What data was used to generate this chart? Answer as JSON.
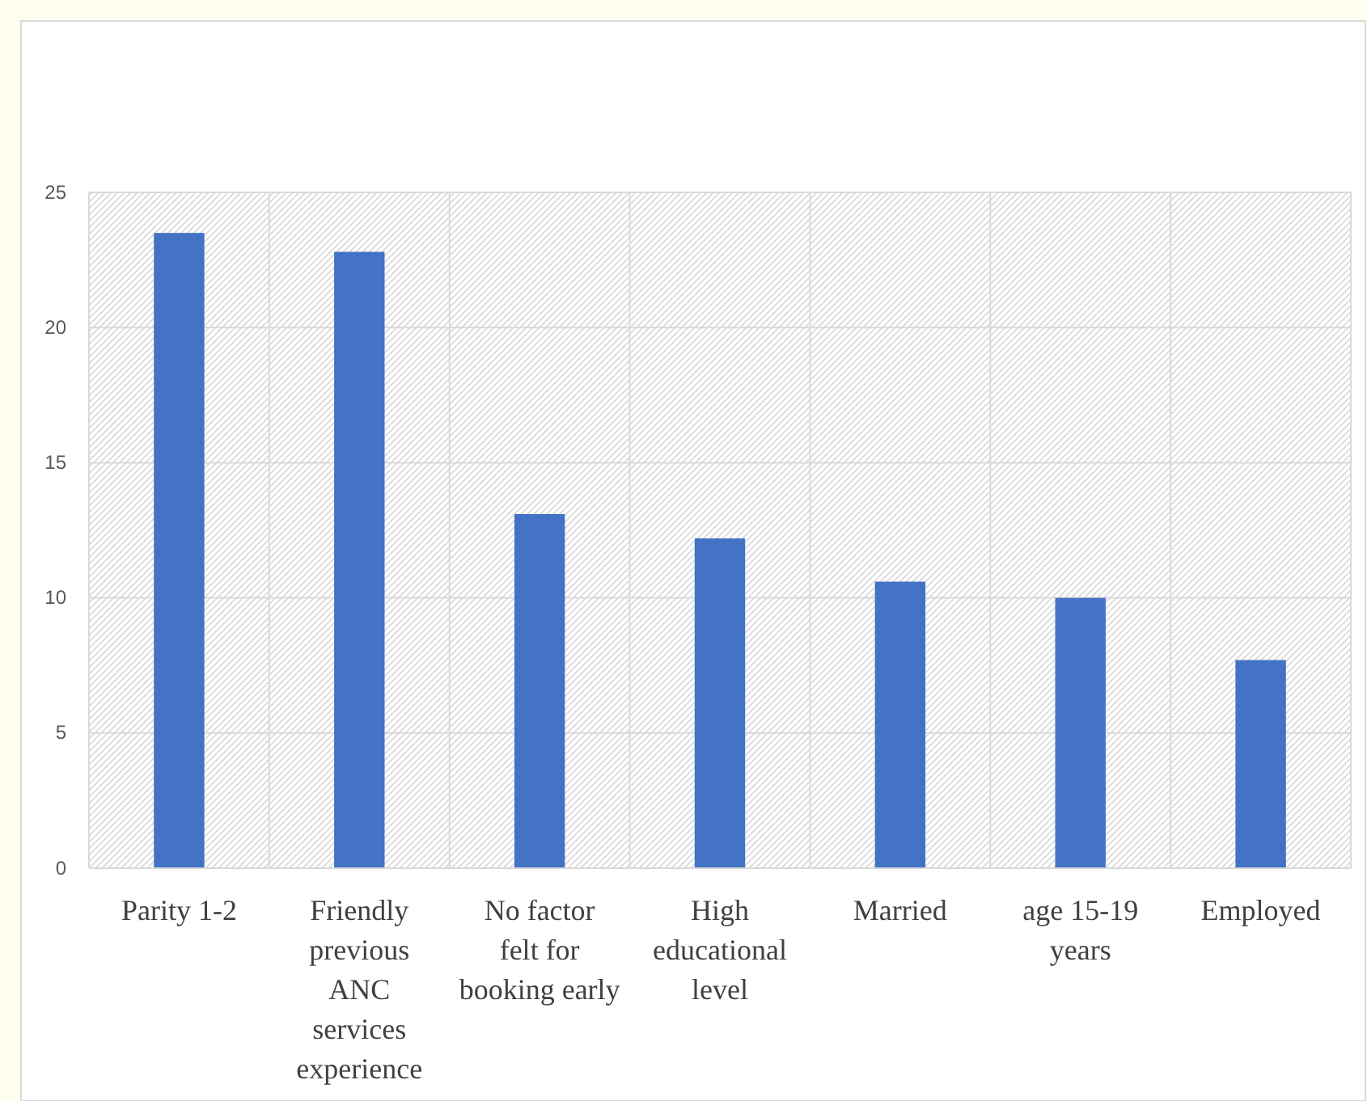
{
  "chart_data": {
    "type": "bar",
    "categories": [
      "Parity 1-2",
      "Friendly previous ANC services experience",
      "No factor felt  for booking early",
      "High educational level",
      "Married",
      "age 15-19 years",
      "Employed"
    ],
    "values": [
      23.5,
      22.8,
      13.1,
      12.2,
      10.6,
      10.0,
      7.7
    ],
    "color": "#4472c4",
    "ylim": [
      0,
      25
    ],
    "yticks": [
      0,
      5,
      10,
      15,
      20,
      25
    ],
    "grid": true
  }
}
